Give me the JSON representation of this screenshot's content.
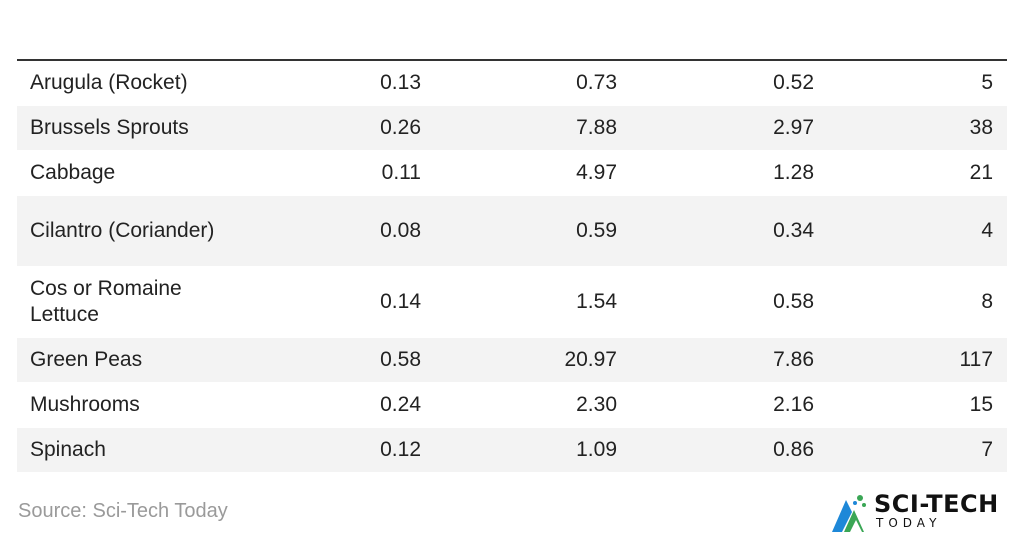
{
  "chart_data": {
    "type": "table",
    "rows": [
      {
        "name": "Arugula (Rocket)",
        "values": [
          "0.13",
          "0.73",
          "0.52",
          "5"
        ]
      },
      {
        "name": "Brussels Sprouts",
        "values": [
          "0.26",
          "7.88",
          "2.97",
          "38"
        ]
      },
      {
        "name": "Cabbage",
        "values": [
          "0.11",
          "4.97",
          "1.28",
          "21"
        ]
      },
      {
        "name": "Cilantro (Coriander)",
        "values": [
          "0.08",
          "0.59",
          "0.34",
          "4"
        ]
      },
      {
        "name": "Cos or Romaine Lettuce",
        "values": [
          "0.14",
          "1.54",
          "0.58",
          "8"
        ]
      },
      {
        "name": "Green Peas",
        "values": [
          "0.58",
          "20.97",
          "7.86",
          "117"
        ]
      },
      {
        "name": "Mushrooms",
        "values": [
          "0.24",
          "2.30",
          "2.16",
          "15"
        ]
      },
      {
        "name": "Spinach",
        "values": [
          "0.12",
          "1.09",
          "0.86",
          "7"
        ]
      }
    ]
  },
  "source": "Source: Sci-Tech Today",
  "logo": {
    "name": "SCI-TECH",
    "sub": "TODAY",
    "colors": {
      "green": "#3aa655",
      "blue": "#1e88d8",
      "dark": "#111111"
    }
  },
  "colors": {
    "row_alt": "#f3f3f3",
    "rule": "#333333",
    "text": "#222222",
    "source_text": "#9a9a9a"
  }
}
